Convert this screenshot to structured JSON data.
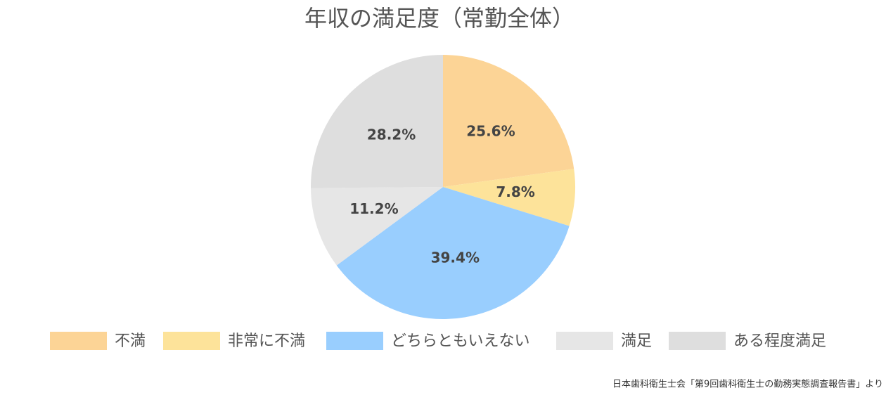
{
  "chart_data": {
    "type": "pie",
    "title": "年収の満足度（常勤全体）",
    "categories": [
      "不満",
      "非常に不満",
      "どちらともいえない",
      "満足",
      "ある程度満足"
    ],
    "values": [
      25.6,
      7.8,
      39.4,
      11.2,
      28.2
    ],
    "value_labels": [
      "25.6%",
      "7.8%",
      "39.4%",
      "11.2%",
      "28.2%"
    ],
    "colors": [
      "#fcd496",
      "#fde39a",
      "#99cefe",
      "#e6e6e6",
      "#dedede"
    ],
    "source": "日本歯科衛生士会「第9回歯科衛生士の勤務実態調査報告書」より"
  }
}
